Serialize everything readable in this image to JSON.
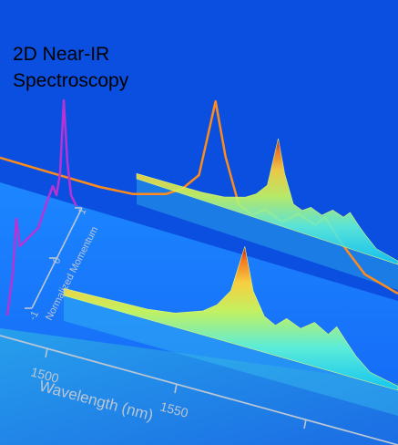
{
  "chart_data": {
    "type": "3d-surface",
    "title_lines": [
      "2D Near-IR",
      "Spectroscopy"
    ],
    "xlabel": "Wavelength (nm)",
    "xticks": [
      "1500",
      "1550"
    ],
    "zlabel": "Normalized Momentum",
    "zticks": [
      "-1",
      "0",
      "1"
    ],
    "colors": {
      "background": "#0a4fe0",
      "wall_top": "#1c86ff",
      "wall_bottom": "#1466f5",
      "projection_wavelength": "#ff8c1a",
      "projection_momentum": "#b733d6",
      "axis": "#b9c6d4",
      "colormap": [
        "#14c8f2",
        "#5ff0d8",
        "#c8f55c",
        "#ffd23a",
        "#ff7a1c",
        "#c81a1a"
      ]
    },
    "series": [
      {
        "wavelength": [
          1480,
          1490,
          1500,
          1510,
          1520,
          1530,
          1535,
          1540,
          1545,
          1548,
          1552,
          1556,
          1560,
          1565,
          1570,
          1575,
          1578,
          1582,
          1585,
          1590,
          1600
        ],
        "intensity": [
          0.06,
          0.07,
          0.08,
          0.09,
          0.12,
          0.2,
          0.28,
          0.42,
          1.0,
          0.62,
          0.3,
          0.26,
          0.33,
          0.28,
          0.38,
          0.34,
          0.42,
          0.3,
          0.22,
          0.1,
          0.04
        ]
      },
      {
        "wavelength": [
          1480,
          1490,
          1500,
          1510,
          1520,
          1530,
          1535,
          1540,
          1545,
          1548,
          1552,
          1556,
          1560,
          1565,
          1570,
          1575,
          1578,
          1582,
          1585,
          1590,
          1600
        ],
        "intensity": [
          0.07,
          0.08,
          0.09,
          0.1,
          0.14,
          0.24,
          0.34,
          0.52,
          1.0,
          0.58,
          0.36,
          0.3,
          0.4,
          0.34,
          0.44,
          0.36,
          0.46,
          0.32,
          0.22,
          0.1,
          0.04
        ]
      }
    ]
  }
}
